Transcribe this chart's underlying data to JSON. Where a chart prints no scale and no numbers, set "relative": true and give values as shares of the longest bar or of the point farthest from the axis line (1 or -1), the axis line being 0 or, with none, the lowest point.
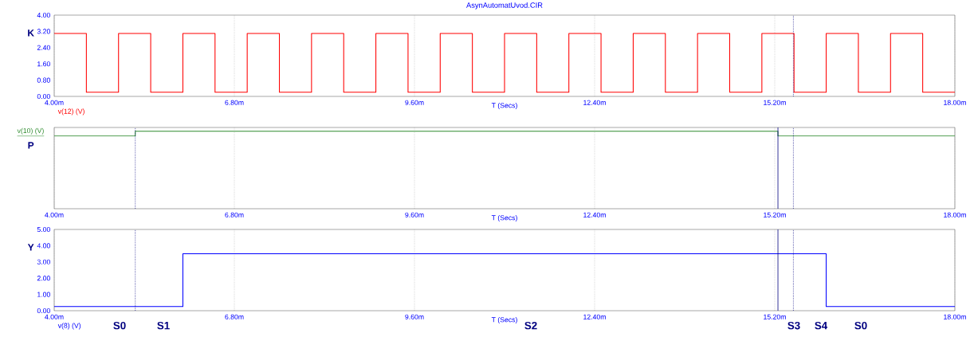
{
  "chart_data": [
    {
      "type": "step",
      "title": "AsynAutomatUvod.CIR",
      "xlabel": "T (Secs)",
      "ylabel": "K",
      "series": [
        {
          "name": "v(12) (V)",
          "color": "#ff0000",
          "x": [
            4,
            4.5,
            5,
            5.5,
            6,
            6.5,
            7,
            7.5,
            8,
            8.5,
            9,
            9.5,
            10,
            10.5,
            11,
            11.5,
            12,
            12.5,
            13,
            13.5,
            14,
            14.5,
            15,
            15.5,
            16,
            16.5,
            17,
            17.5,
            18
          ],
          "values": [
            3.1,
            0.2,
            3.1,
            0.2,
            3.1,
            0.2,
            3.1,
            0.2,
            3.1,
            0.2,
            3.1,
            0.2,
            3.1,
            0.2,
            3.1,
            0.2,
            3.1,
            0.2,
            3.1,
            0.2,
            3.1,
            0.2,
            3.1,
            0.2,
            3.1,
            0.2,
            3.1,
            0.2,
            0.2
          ]
        }
      ],
      "xlim": [
        4,
        18
      ],
      "xticks": [
        {
          "value": 4,
          "label": "4.00m"
        },
        {
          "value": 6.8,
          "label": "6.80m"
        },
        {
          "value": 9.6,
          "label": "9.60m"
        },
        {
          "value": 12.4,
          "label": "12.40m"
        },
        {
          "value": 15.2,
          "label": "15.20m"
        },
        {
          "value": 18,
          "label": "18.00m"
        }
      ],
      "ylim": [
        0,
        4
      ],
      "yticks": [
        {
          "value": 0,
          "label": "0.00"
        },
        {
          "value": 0.8,
          "label": "0.80"
        },
        {
          "value": 1.6,
          "label": "1.60"
        },
        {
          "value": 2.4,
          "label": "2.40"
        },
        {
          "value": 3.2,
          "label": "3.20"
        },
        {
          "value": 4,
          "label": "4.00"
        }
      ],
      "grid": "x",
      "ref_lines": [
        {
          "axis": "x",
          "value": 15.49,
          "color": "#000080",
          "line_style": "dotted"
        }
      ]
    },
    {
      "type": "step",
      "xlabel": "T (Secs)",
      "ylabel": "P",
      "relative": true,
      "tick_labels": "x",
      "series": [
        {
          "name": "v(10) (V)",
          "color": "#2e8b2e",
          "x": [
            4,
            5.26,
            15.25,
            18
          ],
          "values": [
            0.94,
            1,
            0.94,
            0.94
          ]
        }
      ],
      "xlim": [
        4,
        18
      ],
      "xticks": [
        {
          "value": 4,
          "label": "4.00m"
        },
        {
          "value": 6.8,
          "label": "6.80m"
        },
        {
          "value": 9.6,
          "label": "9.60m"
        },
        {
          "value": 12.4,
          "label": "12.40m"
        },
        {
          "value": 15.2,
          "label": "15.20m"
        },
        {
          "value": 18,
          "label": "18.00m"
        }
      ],
      "grid": "x",
      "ref_lines": [
        {
          "axis": "x",
          "value": 5.26,
          "color": "#000080",
          "line_style": "dotted"
        },
        {
          "axis": "x",
          "value": 15.25,
          "color": "#000080",
          "line_style": "solid"
        },
        {
          "axis": "x",
          "value": 15.49,
          "color": "#000080",
          "line_style": "dotted"
        }
      ]
    },
    {
      "type": "step",
      "xlabel": "T (Secs)",
      "ylabel": "Y",
      "series": [
        {
          "name": "v(8) (V)",
          "color": "#0000ff",
          "x": [
            4,
            6.0,
            16.0,
            18
          ],
          "values": [
            0.25,
            3.5,
            0.25,
            0.25
          ]
        }
      ],
      "xlim": [
        4,
        18
      ],
      "xticks": [
        {
          "value": 4,
          "label": "4.00m"
        },
        {
          "value": 6.8,
          "label": "6.80m"
        },
        {
          "value": 9.6,
          "label": "9.60m"
        },
        {
          "value": 12.4,
          "label": "12.40m"
        },
        {
          "value": 15.2,
          "label": "15.20m"
        },
        {
          "value": 18,
          "label": "18.00m"
        }
      ],
      "ylim": [
        0,
        5
      ],
      "yticks": [
        {
          "value": 0,
          "label": "0.00"
        },
        {
          "value": 1,
          "label": "1.00"
        },
        {
          "value": 2,
          "label": "2.00"
        },
        {
          "value": 3,
          "label": "3.00"
        },
        {
          "value": 4,
          "label": "4.00"
        },
        {
          "value": 5,
          "label": "5.00"
        }
      ],
      "grid": "x",
      "ref_lines": [
        {
          "axis": "x",
          "value": 5.26,
          "color": "#000080",
          "line_style": "dotted"
        },
        {
          "axis": "x",
          "value": 15.25,
          "color": "#000080",
          "line_style": "solid"
        },
        {
          "axis": "x",
          "value": 15.49,
          "color": "#000080",
          "line_style": "dotted"
        }
      ],
      "annotations": [
        "S0",
        "S1",
        "S2",
        "S3",
        "S4",
        "S0"
      ]
    }
  ]
}
